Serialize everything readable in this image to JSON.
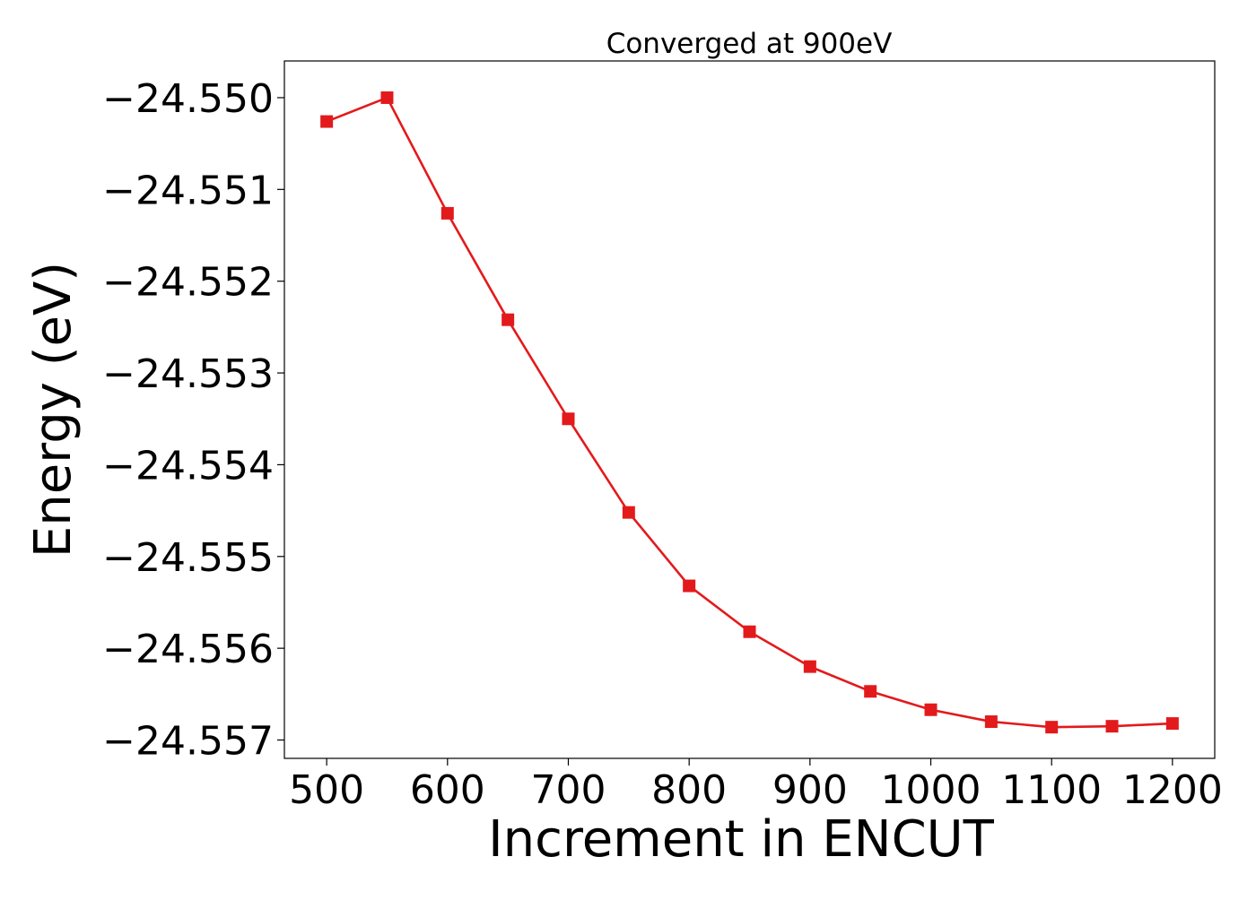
{
  "chart_data": {
    "type": "line",
    "title": "Converged at 900eV",
    "xlabel": "Increment in ENCUT",
    "ylabel": "Energy (eV)",
    "xlim": [
      465,
      1235
    ],
    "ylim": [
      -24.5572,
      -24.5496
    ],
    "xticks": [
      500,
      600,
      700,
      800,
      900,
      1000,
      1100,
      1200
    ],
    "yticks": [
      -24.557,
      -24.556,
      -24.555,
      -24.554,
      -24.553,
      -24.552,
      -24.551,
      -24.55
    ],
    "ytick_labels": [
      "−24.557",
      "−24.556",
      "−24.555",
      "−24.554",
      "−24.553",
      "−24.552",
      "−24.551",
      "−24.550"
    ],
    "grid": false,
    "series": [
      {
        "color": "#e31a1c",
        "marker": "square",
        "x": [
          500,
          550,
          600,
          650,
          700,
          750,
          800,
          850,
          900,
          950,
          1000,
          1050,
          1100,
          1150,
          1200
        ],
        "y": [
          -24.55026,
          -24.55,
          -24.55126,
          -24.55242,
          -24.5535,
          -24.55452,
          -24.55532,
          -24.55582,
          -24.5562,
          -24.55647,
          -24.55667,
          -24.5568,
          -24.55686,
          -24.55685,
          -24.55682
        ]
      }
    ]
  }
}
